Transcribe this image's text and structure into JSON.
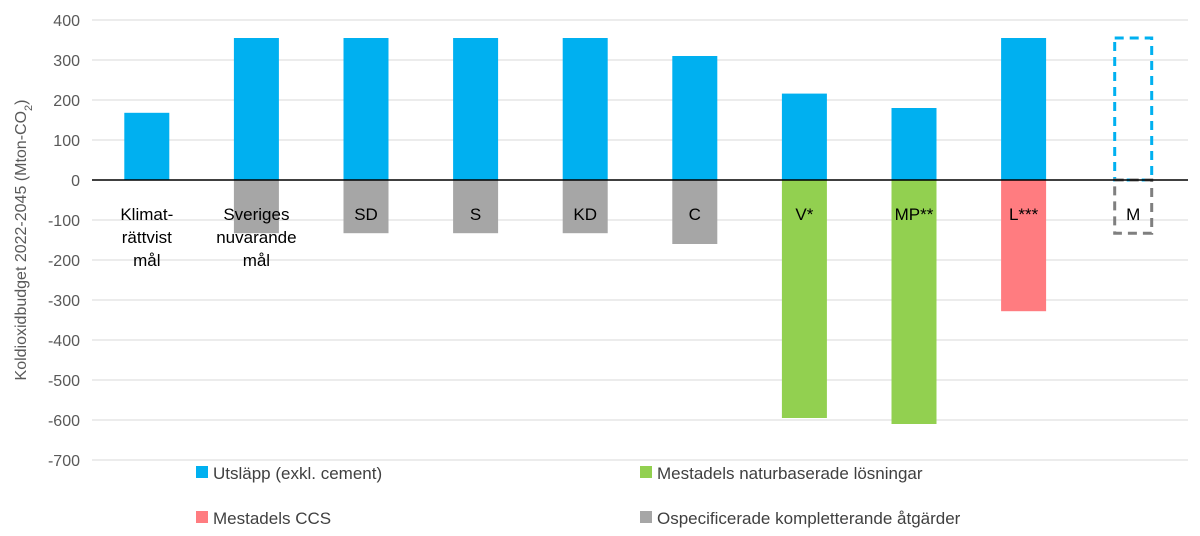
{
  "chart_data": {
    "type": "bar",
    "ylabel_main": "Koldioxidbudget 2022-2045 (Mton-CO",
    "ylabel_sub": "2",
    "ylabel_tail": ")",
    "ylim": [
      -700,
      400
    ],
    "ytick_step": 100,
    "grid": true,
    "legend_position": "bottom",
    "categories": [
      [
        "Klimat-",
        "rättvist",
        "mål"
      ],
      [
        "Sveriges",
        "nuvarande",
        "mål"
      ],
      [
        "SD"
      ],
      [
        "S"
      ],
      [
        "KD"
      ],
      [
        "C"
      ],
      [
        "V*"
      ],
      [
        "MP**"
      ],
      [
        "L***"
      ],
      [
        "M"
      ]
    ],
    "series": [
      {
        "name": "Utsläpp (exkl. cement)",
        "color": "#00B0F0",
        "values": [
          168,
          355,
          355,
          355,
          355,
          310,
          216,
          180,
          355,
          null
        ]
      },
      {
        "name": "Mestadels naturbaserade lösningar",
        "color": "#92D050",
        "values": [
          null,
          null,
          null,
          null,
          null,
          null,
          -595,
          -610,
          null,
          null
        ]
      },
      {
        "name": "Mestadels CCS",
        "color": "#FF7C80",
        "values": [
          null,
          null,
          null,
          null,
          null,
          null,
          null,
          null,
          -328,
          null
        ]
      },
      {
        "name": "Ospecificerade kompletterande åtgärder",
        "color": "#A6A6A6",
        "values": [
          null,
          -133,
          -133,
          -133,
          -133,
          -160,
          null,
          null,
          null,
          null
        ]
      }
    ],
    "dashed_outline": {
      "category_index": 9,
      "upper": 355,
      "upper_color": "#00B0F0",
      "lower": -133,
      "lower_color": "#7F7F7F"
    }
  }
}
